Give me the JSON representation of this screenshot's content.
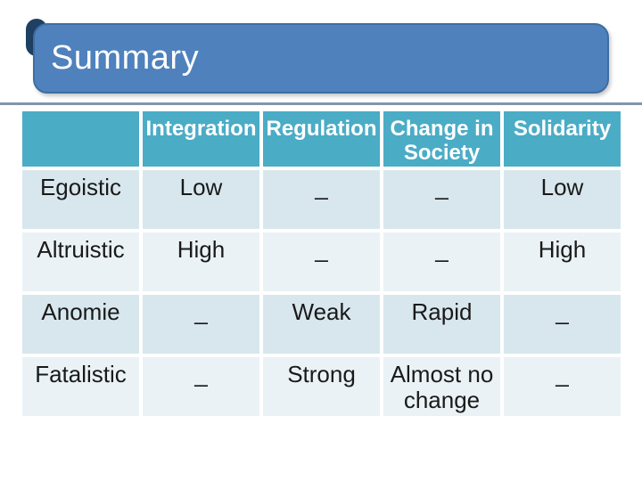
{
  "slide": {
    "title": "Summary"
  },
  "colors": {
    "title_bg": "#4f81bd",
    "title_border": "#3d6da3",
    "corner_accent": "#1f4061",
    "underline": "#8096aa",
    "header_bg": "#4bacc6",
    "header_text": "#ffffff",
    "row_odd_bg": "#d8e7ee",
    "row_even_bg": "#eaf2f6",
    "body_text": "#1a1a1a"
  },
  "table": {
    "columns": [
      "",
      "Integration",
      "Regulation",
      "Change in Society",
      "Solidarity"
    ],
    "rows": [
      {
        "label": "Egoistic",
        "cells": [
          "Low",
          "_",
          "_",
          "Low"
        ]
      },
      {
        "label": "Altruistic",
        "cells": [
          "High",
          "_",
          "_",
          "High"
        ]
      },
      {
        "label": "Anomie",
        "cells": [
          "_",
          "Weak",
          "Rapid",
          "_"
        ]
      },
      {
        "label": "Fatalistic",
        "cells": [
          "_",
          "Strong",
          "Almost no change",
          "_"
        ]
      }
    ]
  }
}
